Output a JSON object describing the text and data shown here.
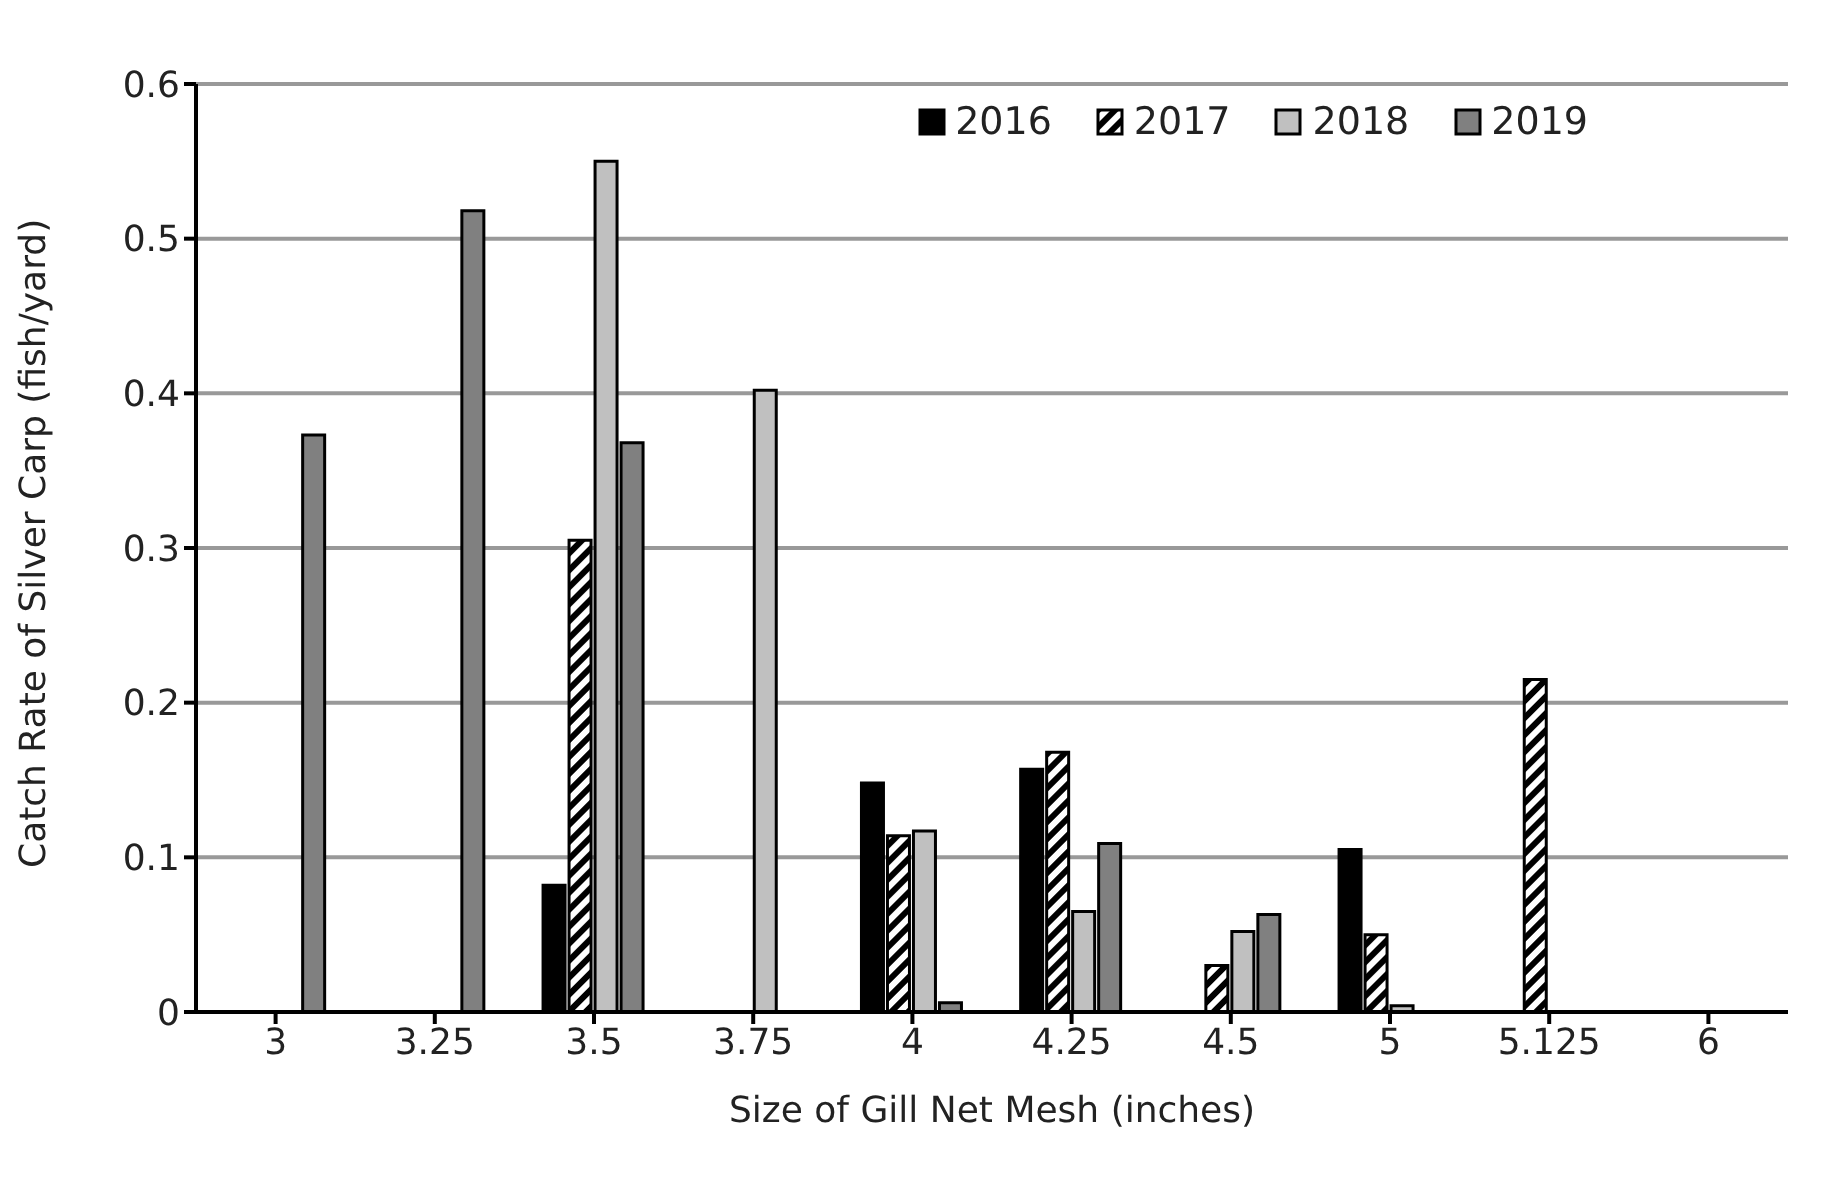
{
  "chart_data": {
    "type": "bar",
    "xlabel": "Size of Gill Net Mesh (inches)",
    "ylabel": "Catch Rate of Silver Carp (fish/yard)",
    "categories": [
      "3",
      "3.25",
      "3.5",
      "3.75",
      "4",
      "4.25",
      "4.5",
      "5",
      "5.125",
      "6"
    ],
    "series": [
      {
        "name": "2016",
        "color": "#000000",
        "values": [
          0,
          0,
          0.082,
          0,
          0.148,
          0.157,
          0,
          0.105,
          0,
          0
        ]
      },
      {
        "name": "2017",
        "color": "#000000",
        "values": [
          0,
          0,
          0.305,
          0,
          0.114,
          0.168,
          0.03,
          0.05,
          0.215,
          0
        ]
      },
      {
        "name": "2018",
        "color": "#c0c0c0",
        "values": [
          0,
          0,
          0.55,
          0.402,
          0.117,
          0.065,
          0.052,
          0.004,
          0,
          0
        ]
      },
      {
        "name": "2019",
        "color": "#808080",
        "values": [
          0.373,
          0.518,
          0.368,
          0,
          0.006,
          0.109,
          0.063,
          0,
          0,
          0
        ]
      }
    ],
    "ylim": [
      0,
      0.6
    ],
    "yticks": [
      0,
      0.1,
      0.2,
      0.3,
      0.4,
      0.5,
      0.6
    ],
    "grid": "y",
    "legend": "top right"
  }
}
